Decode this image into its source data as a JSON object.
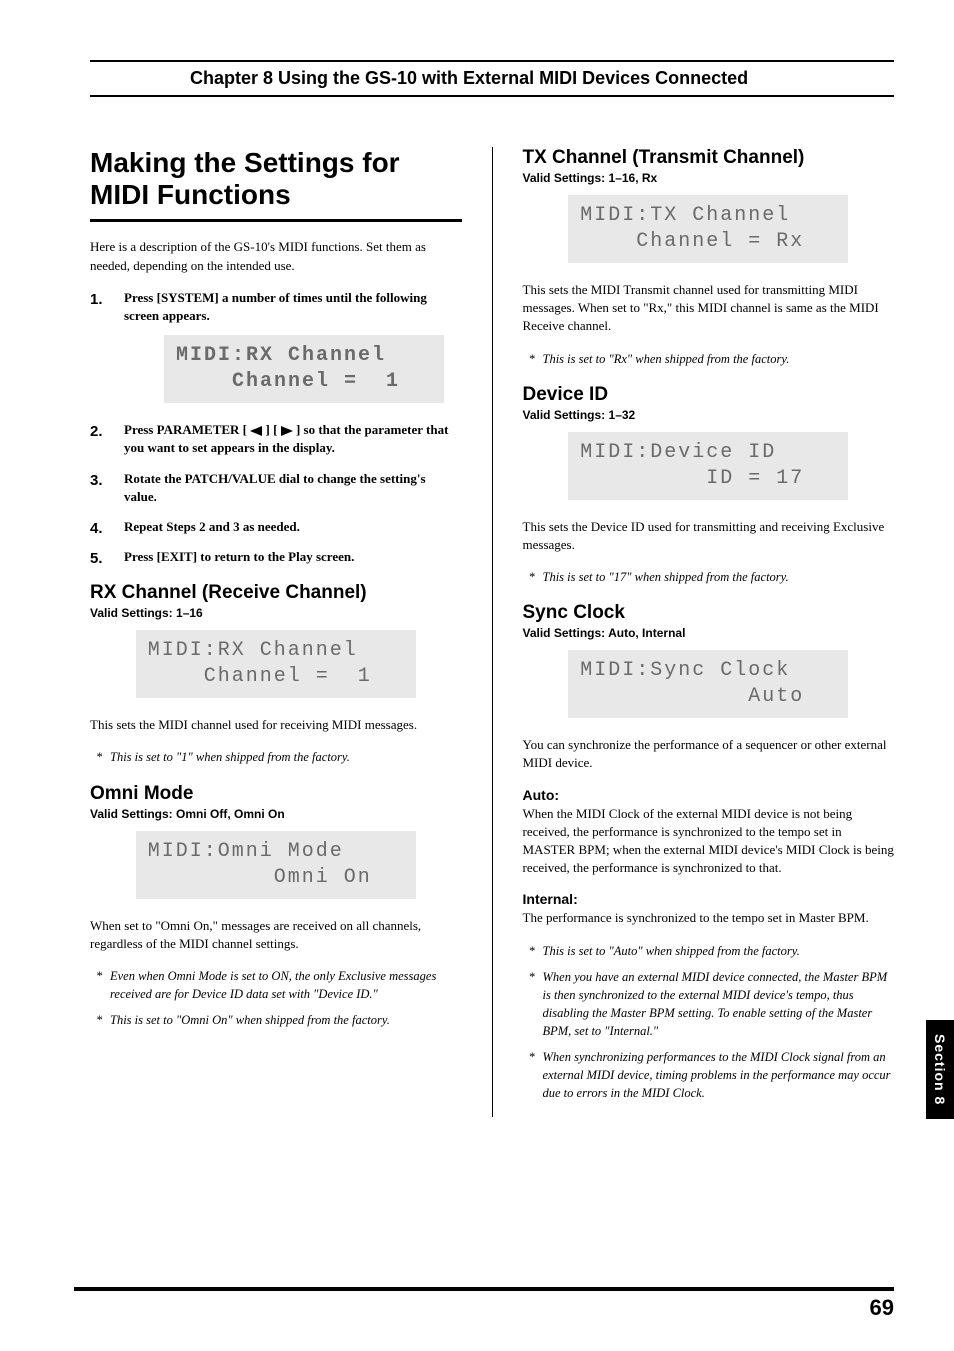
{
  "chapter_header": "Chapter 8 Using the GS-10 with External MIDI Devices Connected",
  "main_title": "Making the Settings for MIDI Functions",
  "intro": "Here is a description of the GS-10's MIDI functions. Set them as needed, depending on the intended use.",
  "steps": [
    "Press [SYSTEM] a number of times until the following screen appears.",
    "Press PARAMETER [ ◀ ] [ ▶ ] so that the parameter that you want to set appears in the display.",
    "Rotate the PATCH/VALUE dial to change the setting's value.",
    "Repeat Steps 2 and 3 as needed.",
    "Press [EXIT] to return to the Play screen."
  ],
  "step2_pre": "Press PARAMETER [",
  "step2_mid": "] [",
  "step2_post": " ] so that the parameter that you want to set appears in the display.",
  "lcd_rx1": "MIDI:RX Channel\n    Channel =  1",
  "rx": {
    "title": "RX Channel (Receive Channel)",
    "valid": "Valid Settings: 1–16",
    "lcd": "MIDI:RX Channel\n    Channel =  1",
    "body": "This sets the MIDI channel used for receiving MIDI messages.",
    "note": "This is set to \"1\" when shipped from the factory."
  },
  "omni": {
    "title": "Omni Mode",
    "valid": "Valid Settings: Omni Off, Omni On",
    "lcd": "MIDI:Omni Mode\n         Omni On",
    "body": "When set to \"Omni On,\" messages are received on all channels, regardless of the MIDI channel settings.",
    "note1": "Even when Omni Mode is set to ON, the only Exclusive messages received are for Device ID data set with \"Device ID.\"",
    "note2": "This is set to \"Omni On\" when shipped from the factory."
  },
  "tx": {
    "title": "TX Channel (Transmit Channel)",
    "valid": "Valid Settings: 1–16, Rx",
    "lcd": "MIDI:TX Channel\n    Channel = Rx",
    "body": "This sets the MIDI Transmit channel used for transmitting MIDI messages. When set to \"Rx,\" this MIDI channel is same as the MIDI Receive channel.",
    "note": "This is set to \"Rx\" when shipped from the factory."
  },
  "device": {
    "title": "Device ID",
    "valid": "Valid Settings: 1–32",
    "lcd": "MIDI:Device ID\n         ID = 17",
    "body": "This sets the Device ID used for transmitting and receiving Exclusive messages.",
    "note": "This is set to \"17\" when shipped from the factory."
  },
  "sync": {
    "title": "Sync Clock",
    "valid": "Valid Settings: Auto, Internal",
    "lcd": "MIDI:Sync Clock\n            Auto",
    "body": "You can synchronize the performance of a sequencer or other external MIDI device.",
    "auto_title": "Auto:",
    "auto_body": "When the MIDI Clock of the external MIDI device is not being received, the performance is synchronized to the tempo set in MASTER BPM; when the external MIDI device's MIDI Clock is being received, the performance is synchronized to that.",
    "internal_title": "Internal:",
    "internal_body": "The performance is synchronized to the tempo set in Master BPM.",
    "note1": "This is set to \"Auto\" when shipped from the factory.",
    "note2": "When you have an external MIDI device connected, the Master BPM is then synchronized to the external MIDI device's tempo, thus disabling the Master BPM setting. To enable setting of the Master BPM, set to \"Internal.\"",
    "note3": "When synchronizing performances to the MIDI Clock signal from an external MIDI device, timing problems in the performance may occur due to errors in the MIDI Clock."
  },
  "side_tab": "Section 8",
  "page_number": "69"
}
